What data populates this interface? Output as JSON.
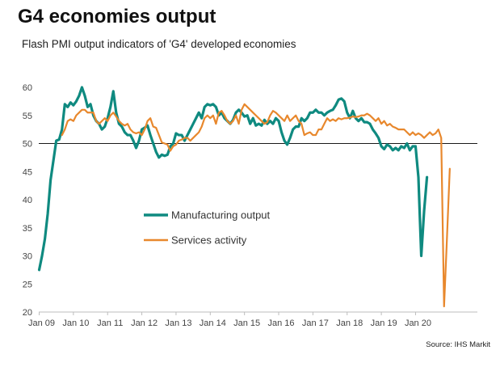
{
  "page": {
    "title": "G4 economies output",
    "subtitle": "Flash PMI output indicators of 'G4' developed economies",
    "source": "Source: IHS Markit"
  },
  "chart_data": {
    "type": "line",
    "title": "G4 economies output",
    "subtitle": "Flash PMI output indicators of 'G4' developed economies",
    "xlabel": "",
    "ylabel": "",
    "ylim": [
      20,
      60
    ],
    "yticks": [
      20,
      25,
      30,
      35,
      40,
      45,
      50,
      55,
      60
    ],
    "xticks": [
      "Jan 09",
      "Jan 10",
      "Jan 11",
      "Jan 12",
      "Jan 13",
      "Jan 14",
      "Jan 15",
      "Jan 16",
      "Jan 17",
      "Jan 18",
      "Jan 19",
      "Jan 20"
    ],
    "reference_line": 50,
    "grid": false,
    "legend_position": "center-left",
    "x_start": "2009-01",
    "series": [
      {
        "name": "Manufacturing output",
        "color": "#0f8a80",
        "x_start": "2009-01",
        "values": [
          27.5,
          30.0,
          33.0,
          37.5,
          43.5,
          47.0,
          50.5,
          50.7,
          52.5,
          57.0,
          56.5,
          57.3,
          56.8,
          57.5,
          58.5,
          60.0,
          58.5,
          56.5,
          57.0,
          55.0,
          54.0,
          53.5,
          52.5,
          53.0,
          54.5,
          56.5,
          59.3,
          55.5,
          53.5,
          53.0,
          52.0,
          51.5,
          51.5,
          50.5,
          49.2,
          50.5,
          52.5,
          52.8,
          53.2,
          51.5,
          50.0,
          48.5,
          47.5,
          48.0,
          47.8,
          48.0,
          49.5,
          50.0,
          51.8,
          51.5,
          51.5,
          50.5,
          51.5,
          52.5,
          53.5,
          54.5,
          55.5,
          54.5,
          56.5,
          57.0,
          56.8,
          57.0,
          56.5,
          55.0,
          55.5,
          54.5,
          54.0,
          53.5,
          54.2,
          55.5,
          56.0,
          55.5,
          54.8,
          55.0,
          53.5,
          54.5,
          53.2,
          53.5,
          53.2,
          54.2,
          53.5,
          54.0,
          53.5,
          54.5,
          54.0,
          52.0,
          50.5,
          49.8,
          51.0,
          52.5,
          53.0,
          53.0,
          54.5,
          54.0,
          54.5,
          55.5,
          55.5,
          56.0,
          55.5,
          55.5,
          55.0,
          55.5,
          55.8,
          56.0,
          56.8,
          57.8,
          58.0,
          57.5,
          55.5,
          54.5,
          55.8,
          54.5,
          54.0,
          54.5,
          53.8,
          53.8,
          53.5,
          52.5,
          51.8,
          51.0,
          49.5,
          49.0,
          49.8,
          49.5,
          48.8,
          49.2,
          48.8,
          49.5,
          49.2,
          50.0,
          48.8,
          49.5,
          49.5,
          44.0,
          30.0,
          38.0,
          44.0
        ]
      },
      {
        "name": "Services activity",
        "color": "#e8882d",
        "x_start": "2009-09",
        "values": [
          51.5,
          52.5,
          54.0,
          54.3,
          54.0,
          55.0,
          55.5,
          56.0,
          56.0,
          55.5,
          55.5,
          55.5,
          54.0,
          53.5,
          54.0,
          54.5,
          54.0,
          55.0,
          55.5,
          54.8,
          54.0,
          53.5,
          53.2,
          53.5,
          52.5,
          52.0,
          51.8,
          52.0,
          51.5,
          52.5,
          54.0,
          54.5,
          53.0,
          52.8,
          51.5,
          50.2,
          50.0,
          49.8,
          48.7,
          49.5,
          49.8,
          50.5,
          50.7,
          51.0,
          51.0,
          50.5,
          51.0,
          51.5,
          52.0,
          53.0,
          54.5,
          55.0,
          54.5,
          55.0,
          53.5,
          55.5,
          55.8,
          55.0,
          54.0,
          53.5,
          54.0,
          55.0,
          53.5,
          56.0,
          57.0,
          56.5,
          56.0,
          55.5,
          55.0,
          54.5,
          54.0,
          53.5,
          53.8,
          55.0,
          55.8,
          55.5,
          55.0,
          54.5,
          54.0,
          55.0,
          54.0,
          54.5,
          55.0,
          54.0,
          53.5,
          51.5,
          51.8,
          52.0,
          51.5,
          51.5,
          52.5,
          52.5,
          53.5,
          54.5,
          54.0,
          54.3,
          54.0,
          54.5,
          54.3,
          54.5,
          54.5,
          54.6,
          54.8,
          54.7,
          54.8,
          55.0,
          55.0,
          55.3,
          55.0,
          54.5,
          54.0,
          54.5,
          53.5,
          54.0,
          53.2,
          53.5,
          53.0,
          52.8,
          52.5,
          52.5,
          52.5,
          52.0,
          51.5,
          52.0,
          51.5,
          51.8,
          51.5,
          51.0,
          51.5,
          52.0,
          51.5,
          51.8,
          52.5,
          51.0,
          21.0,
          33.0,
          45.5
        ]
      }
    ]
  }
}
